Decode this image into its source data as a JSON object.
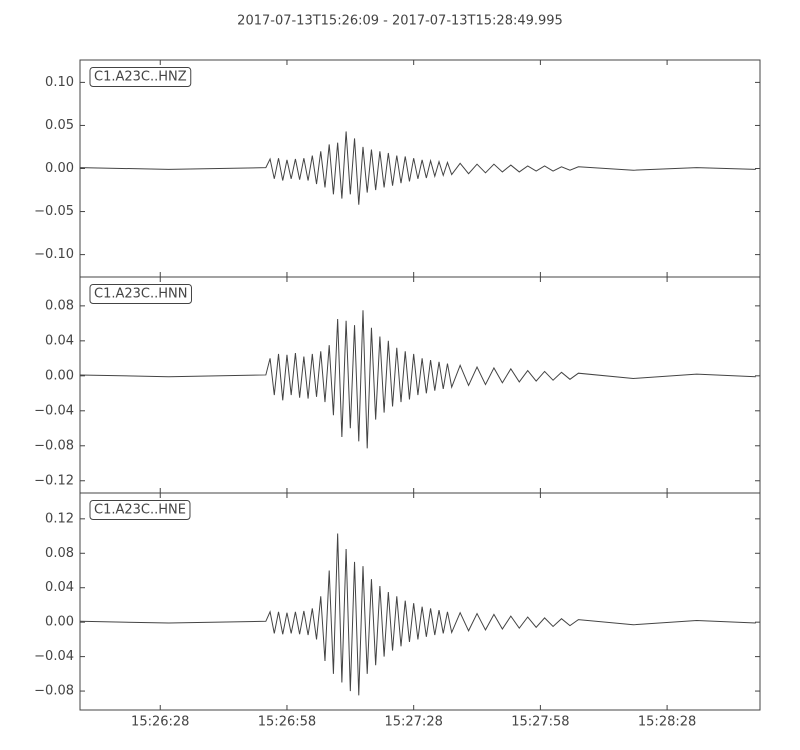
{
  "title": "2017-07-13T15:26:09  -  2017-07-13T15:28:49.995",
  "chart_data": [
    {
      "type": "line",
      "label": "C1.A23C..HNZ",
      "color": "#444444",
      "xlim": [
        "15:26:09",
        "15:28:49.995"
      ],
      "xticks": [
        "15:26:28",
        "15:26:58",
        "15:27:28",
        "15:27:58",
        "15:28:28"
      ],
      "ylim": [
        -0.126,
        0.126
      ],
      "yticks": [
        {
          "value": -0.1,
          "label": "−0.10"
        },
        {
          "value": -0.05,
          "label": "−0.05"
        },
        {
          "value": 0,
          "label": "0.00"
        },
        {
          "value": 0.05,
          "label": "0.05"
        },
        {
          "value": 0.1,
          "label": "0.10"
        }
      ],
      "x": [
        "15:26:09",
        "15:26:30",
        "15:26:53",
        "15:26:54",
        "15:26:55",
        "15:26:56",
        "15:26:57",
        "15:26:58",
        "15:26:59",
        "15:27:00",
        "15:27:01",
        "15:27:02",
        "15:27:03",
        "15:27:04",
        "15:27:05",
        "15:27:06",
        "15:27:07",
        "15:27:08",
        "15:27:09",
        "15:27:10",
        "15:27:11",
        "15:27:12",
        "15:27:13",
        "15:27:14",
        "15:27:15",
        "15:27:16",
        "15:27:17",
        "15:27:18",
        "15:27:19",
        "15:27:20",
        "15:27:21",
        "15:27:22",
        "15:27:23",
        "15:27:24",
        "15:27:25",
        "15:27:26",
        "15:27:27",
        "15:27:28",
        "15:27:29",
        "15:27:30",
        "15:27:31",
        "15:27:32",
        "15:27:33",
        "15:27:34",
        "15:27:35",
        "15:27:36",
        "15:27:37",
        "15:27:39",
        "15:27:41",
        "15:27:43",
        "15:27:45",
        "15:27:47",
        "15:27:49",
        "15:27:51",
        "15:27:53",
        "15:27:55",
        "15:27:57",
        "15:27:59",
        "15:28:01",
        "15:28:03",
        "15:28:05",
        "15:28:07",
        "15:28:20",
        "15:28:35",
        "15:28:49"
      ],
      "values": [
        0.001,
        -0.001,
        0.001,
        0.011,
        -0.012,
        0.012,
        -0.014,
        0.01,
        -0.012,
        0.011,
        -0.013,
        0.012,
        -0.014,
        0.015,
        -0.018,
        0.02,
        -0.022,
        0.028,
        -0.03,
        0.03,
        -0.035,
        0.043,
        -0.03,
        0.035,
        -0.042,
        0.025,
        -0.028,
        0.022,
        -0.025,
        0.02,
        -0.022,
        0.018,
        -0.02,
        0.015,
        -0.017,
        0.014,
        -0.015,
        0.012,
        -0.012,
        0.01,
        -0.011,
        0.009,
        -0.009,
        0.008,
        -0.008,
        0.007,
        -0.007,
        0.006,
        -0.006,
        0.005,
        -0.005,
        0.005,
        -0.004,
        0.004,
        -0.004,
        0.003,
        -0.003,
        0.003,
        -0.003,
        0.002,
        -0.002,
        0.002,
        -0.002,
        0.001,
        -0.001
      ]
    },
    {
      "type": "line",
      "label": "C1.A23C..HNN",
      "color": "#444444",
      "xlim": [
        "15:26:09",
        "15:28:49.995"
      ],
      "xticks": [
        "15:26:28",
        "15:26:58",
        "15:27:28",
        "15:27:58",
        "15:28:28"
      ],
      "ylim": [
        -0.134,
        0.113
      ],
      "yticks": [
        {
          "value": -0.12,
          "label": "−0.12"
        },
        {
          "value": -0.08,
          "label": "−0.08"
        },
        {
          "value": -0.04,
          "label": "−0.04"
        },
        {
          "value": 0,
          "label": "0.00"
        },
        {
          "value": 0.04,
          "label": "0.04"
        },
        {
          "value": 0.08,
          "label": "0.08"
        }
      ],
      "x": [
        "15:26:09",
        "15:26:30",
        "15:26:53",
        "15:26:54",
        "15:26:55",
        "15:26:56",
        "15:26:57",
        "15:26:58",
        "15:26:59",
        "15:27:00",
        "15:27:01",
        "15:27:02",
        "15:27:03",
        "15:27:04",
        "15:27:05",
        "15:27:06",
        "15:27:07",
        "15:27:08",
        "15:27:09",
        "15:27:10",
        "15:27:11",
        "15:27:12",
        "15:27:13",
        "15:27:14",
        "15:27:15",
        "15:27:16",
        "15:27:17",
        "15:27:18",
        "15:27:19",
        "15:27:20",
        "15:27:21",
        "15:27:22",
        "15:27:23",
        "15:27:24",
        "15:27:25",
        "15:27:26",
        "15:27:27",
        "15:27:28",
        "15:27:29",
        "15:27:30",
        "15:27:31",
        "15:27:32",
        "15:27:33",
        "15:27:34",
        "15:27:35",
        "15:27:36",
        "15:27:37",
        "15:27:39",
        "15:27:41",
        "15:27:43",
        "15:27:45",
        "15:27:47",
        "15:27:49",
        "15:27:51",
        "15:27:53",
        "15:27:55",
        "15:27:57",
        "15:27:59",
        "15:28:01",
        "15:28:03",
        "15:28:05",
        "15:28:07",
        "15:28:20",
        "15:28:35",
        "15:28:49"
      ],
      "values": [
        0.001,
        -0.001,
        0.001,
        0.02,
        -0.022,
        0.025,
        -0.028,
        0.024,
        -0.022,
        0.026,
        -0.025,
        0.022,
        -0.026,
        0.025,
        -0.024,
        0.028,
        -0.03,
        0.035,
        -0.045,
        0.065,
        -0.07,
        0.063,
        -0.06,
        0.058,
        -0.075,
        0.075,
        -0.083,
        0.055,
        -0.05,
        0.045,
        -0.042,
        0.04,
        -0.035,
        0.032,
        -0.03,
        0.028,
        -0.027,
        0.025,
        -0.022,
        0.02,
        -0.02,
        0.018,
        -0.017,
        0.016,
        -0.015,
        0.014,
        -0.013,
        0.012,
        -0.011,
        0.01,
        -0.01,
        0.009,
        -0.008,
        0.008,
        -0.007,
        0.006,
        -0.006,
        0.005,
        -0.005,
        0.004,
        -0.004,
        0.003,
        -0.003,
        0.002,
        -0.001
      ]
    },
    {
      "type": "line",
      "label": "C1.A23C..HNE",
      "color": "#444444",
      "xlim": [
        "15:26:09",
        "15:28:49.995"
      ],
      "xticks": [
        "15:26:28",
        "15:26:58",
        "15:27:28",
        "15:27:58",
        "15:28:28"
      ],
      "ylim": [
        -0.102,
        0.15
      ],
      "yticks": [
        {
          "value": -0.08,
          "label": "−0.08"
        },
        {
          "value": -0.04,
          "label": "−0.04"
        },
        {
          "value": 0,
          "label": "0.00"
        },
        {
          "value": 0.04,
          "label": "0.04"
        },
        {
          "value": 0.08,
          "label": "0.08"
        },
        {
          "value": 0.12,
          "label": "0.12"
        }
      ],
      "x": [
        "15:26:09",
        "15:26:30",
        "15:26:53",
        "15:26:54",
        "15:26:55",
        "15:26:56",
        "15:26:57",
        "15:26:58",
        "15:26:59",
        "15:27:00",
        "15:27:01",
        "15:27:02",
        "15:27:03",
        "15:27:04",
        "15:27:05",
        "15:27:06",
        "15:27:07",
        "15:27:08",
        "15:27:09",
        "15:27:10",
        "15:27:11",
        "15:27:12",
        "15:27:13",
        "15:27:14",
        "15:27:15",
        "15:27:16",
        "15:27:17",
        "15:27:18",
        "15:27:19",
        "15:27:20",
        "15:27:21",
        "15:27:22",
        "15:27:23",
        "15:27:24",
        "15:27:25",
        "15:27:26",
        "15:27:27",
        "15:27:28",
        "15:27:29",
        "15:27:30",
        "15:27:31",
        "15:27:32",
        "15:27:33",
        "15:27:34",
        "15:27:35",
        "15:27:36",
        "15:27:37",
        "15:27:39",
        "15:27:41",
        "15:27:43",
        "15:27:45",
        "15:27:47",
        "15:27:49",
        "15:27:51",
        "15:27:53",
        "15:27:55",
        "15:27:57",
        "15:27:59",
        "15:28:01",
        "15:28:03",
        "15:28:05",
        "15:28:07",
        "15:28:20",
        "15:28:35",
        "15:28:49"
      ],
      "values": [
        0.001,
        -0.001,
        0.001,
        0.012,
        -0.013,
        0.012,
        -0.014,
        0.011,
        -0.013,
        0.012,
        -0.014,
        0.013,
        -0.015,
        0.016,
        -0.02,
        0.03,
        -0.045,
        0.06,
        -0.06,
        0.103,
        -0.07,
        0.085,
        -0.08,
        0.07,
        -0.085,
        0.065,
        -0.06,
        0.05,
        -0.05,
        0.042,
        -0.04,
        0.035,
        -0.033,
        0.03,
        -0.028,
        0.025,
        -0.023,
        0.022,
        -0.02,
        0.018,
        -0.017,
        0.016,
        -0.015,
        0.014,
        -0.013,
        0.012,
        -0.012,
        0.011,
        -0.01,
        0.01,
        -0.009,
        0.009,
        -0.008,
        0.007,
        -0.007,
        0.006,
        -0.006,
        0.005,
        -0.005,
        0.004,
        -0.004,
        0.003,
        -0.003,
        0.002,
        -0.001
      ]
    }
  ]
}
